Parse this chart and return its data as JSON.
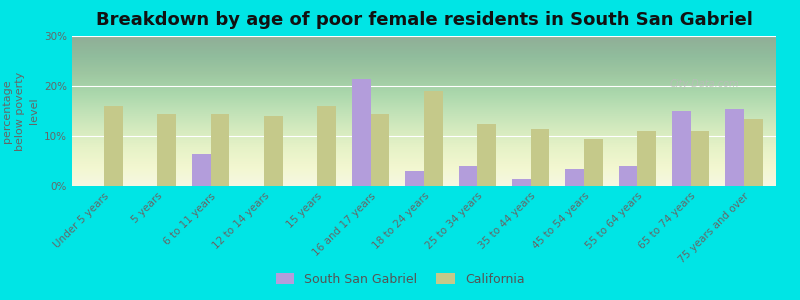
{
  "title": "Breakdown by age of poor female residents in South San Gabriel",
  "categories": [
    "Under 5 years",
    "5 years",
    "6 to 11 years",
    "12 to 14 years",
    "15 years",
    "16 and 17 years",
    "18 to 24 years",
    "25 to 34 years",
    "35 to 44 years",
    "45 to 54 years",
    "55 to 64 years",
    "65 to 74 years",
    "75 years and over"
  ],
  "south_san_gabriel": [
    0,
    0,
    6.5,
    0,
    0,
    21.5,
    3.0,
    4.0,
    1.5,
    3.5,
    4.0,
    15.0,
    15.5
  ],
  "california": [
    16.0,
    14.5,
    14.5,
    14.0,
    16.0,
    14.5,
    19.0,
    12.5,
    11.5,
    9.5,
    11.0,
    11.0,
    13.5
  ],
  "color_ssg": "#b39ddb",
  "color_ca": "#c5c98a",
  "bg_color": "#00e5e5",
  "ylabel": "percentage\nbelow poverty\nlevel",
  "ylim": [
    0,
    30
  ],
  "yticks": [
    0,
    10,
    20,
    30
  ],
  "ytick_labels": [
    "0%",
    "10%",
    "20%",
    "30%"
  ],
  "bar_width": 0.35,
  "title_fontsize": 13,
  "axis_label_fontsize": 8,
  "tick_fontsize": 7.5,
  "legend_fontsize": 9
}
